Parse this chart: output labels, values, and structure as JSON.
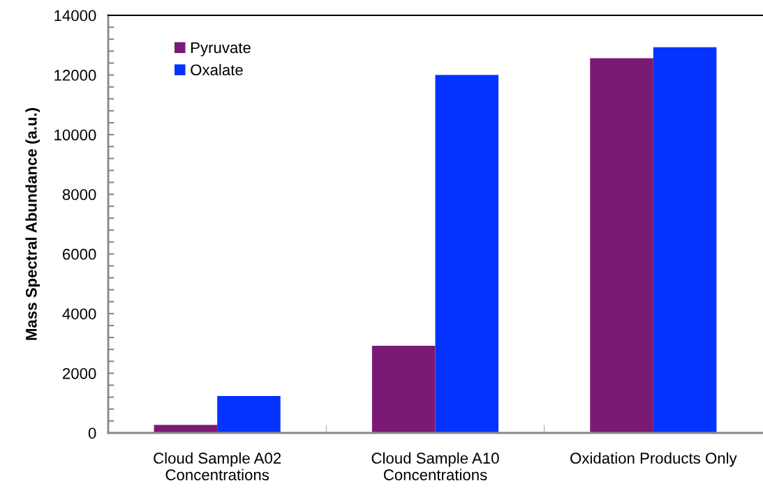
{
  "chart_data": {
    "type": "bar",
    "ylabel": "Mass Spectral Abundance (a.u.)",
    "categories": [
      "Cloud Sample A02\nConcentrations",
      "Cloud Sample A10\nConcentrations",
      "Oxidation Products Only"
    ],
    "series": [
      {
        "name": "Pyruvate",
        "color": "#7a1a74",
        "values": [
          270,
          2920,
          12560
        ]
      },
      {
        "name": "Oxalate",
        "color": "#0433ff",
        "values": [
          1240,
          12000,
          12930
        ]
      }
    ],
    "ylim": [
      0,
      14000
    ],
    "yticks": [
      0,
      2000,
      4000,
      6000,
      8000,
      10000,
      12000,
      14000
    ],
    "grid": false,
    "legend": "top left"
  }
}
